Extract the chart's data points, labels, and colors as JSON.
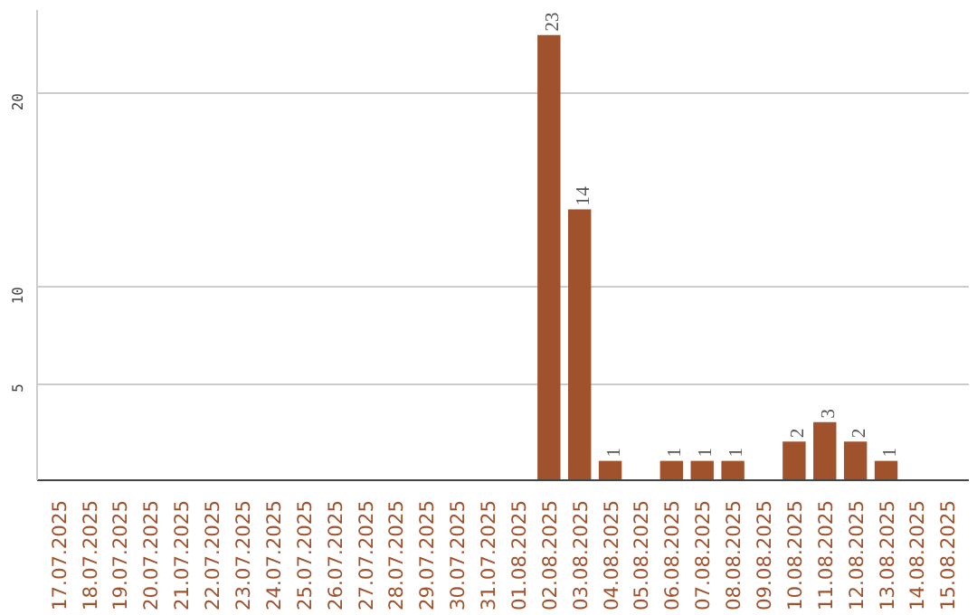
{
  "chart_data": {
    "type": "bar",
    "categories": [
      "17.07.2025",
      "18.07.2025",
      "19.07.2025",
      "20.07.2025",
      "21.07.2025",
      "22.07.2025",
      "23.07.2025",
      "24.07.2025",
      "25.07.2025",
      "26.07.2025",
      "27.07.2025",
      "28.07.2025",
      "29.07.2025",
      "30.07.2025",
      "31.07.2025",
      "01.08.2025",
      "02.08.2025",
      "03.08.2025",
      "04.08.2025",
      "05.08.2025",
      "06.08.2025",
      "07.08.2025",
      "08.08.2025",
      "09.08.2025",
      "10.08.2025",
      "11.08.2025",
      "12.08.2025",
      "13.08.2025",
      "14.08.2025",
      "15.08.2025"
    ],
    "values": [
      0,
      0,
      0,
      0,
      0,
      0,
      0,
      0,
      0,
      0,
      0,
      0,
      0,
      0,
      0,
      0,
      23,
      14,
      1,
      0,
      1,
      1,
      1,
      0,
      2,
      3,
      2,
      1,
      0,
      0
    ],
    "value_labels": [
      null,
      null,
      null,
      null,
      null,
      null,
      null,
      null,
      null,
      null,
      null,
      null,
      null,
      null,
      null,
      null,
      "23",
      "14",
      "1",
      null,
      "1",
      "1",
      "1",
      null,
      "2",
      "3",
      "2",
      "1",
      null,
      null
    ],
    "color": "#a0522d",
    "ylim": [
      0,
      24.3
    ],
    "yticks": [
      5,
      10,
      20
    ],
    "grid": "y"
  }
}
